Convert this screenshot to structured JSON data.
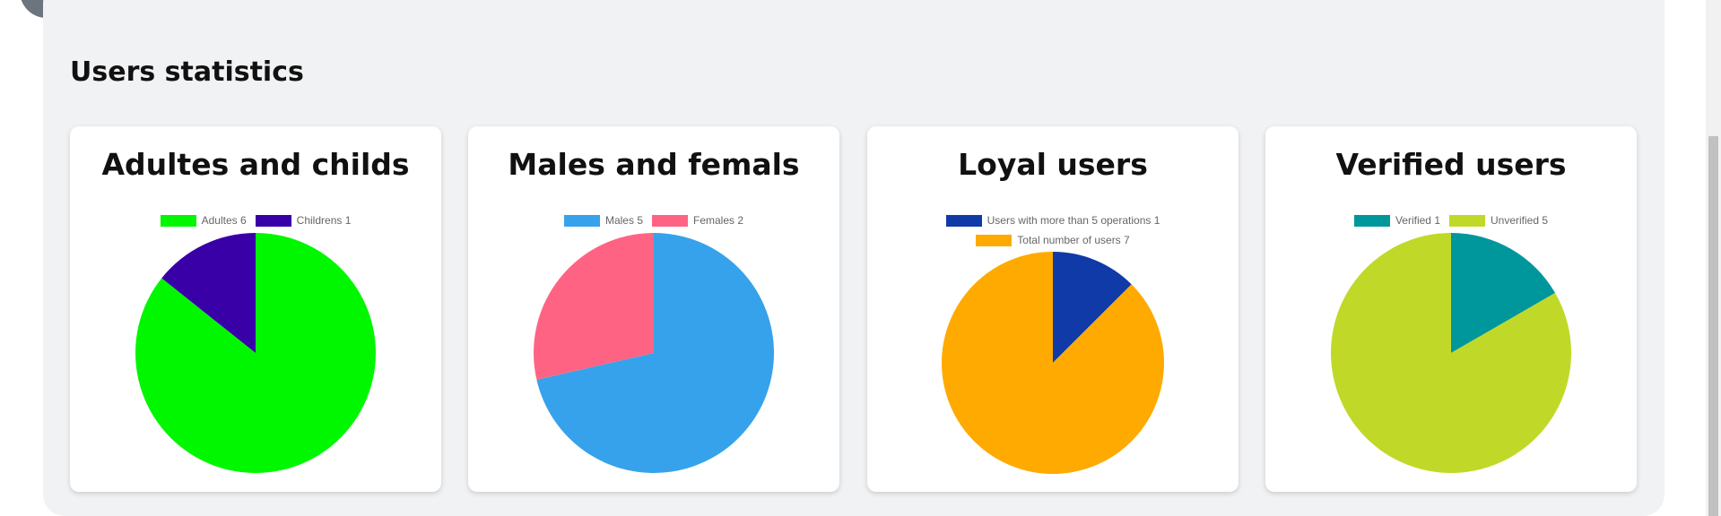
{
  "section": {
    "title": "Users statistics"
  },
  "chart_data": [
    {
      "type": "pie",
      "title": "Adultes and childs",
      "legend_placement": "top",
      "categories": [
        "Adultes 6",
        "Childrens 1"
      ],
      "values": [
        6,
        1
      ],
      "colors": [
        "#00f700",
        "#3a00a8"
      ]
    },
    {
      "type": "pie",
      "title": "Males and femals",
      "legend_placement": "top",
      "categories": [
        "Males 5",
        "Females 2"
      ],
      "values": [
        5,
        2
      ],
      "colors": [
        "#36a2eb",
        "#ff6384"
      ]
    },
    {
      "type": "pie",
      "title": "Loyal users",
      "legend_placement": "top",
      "categories": [
        "Users with more than 5 operations 1",
        "Total number of users 7"
      ],
      "values": [
        1,
        7
      ],
      "colors": [
        "#0f3aa8",
        "#ffaa00"
      ]
    },
    {
      "type": "pie",
      "title": "Verified users",
      "legend_placement": "top",
      "categories": [
        "Verified 1",
        "Unverified 5"
      ],
      "values": [
        1,
        5
      ],
      "colors": [
        "#00979c",
        "#c0d928"
      ]
    }
  ]
}
